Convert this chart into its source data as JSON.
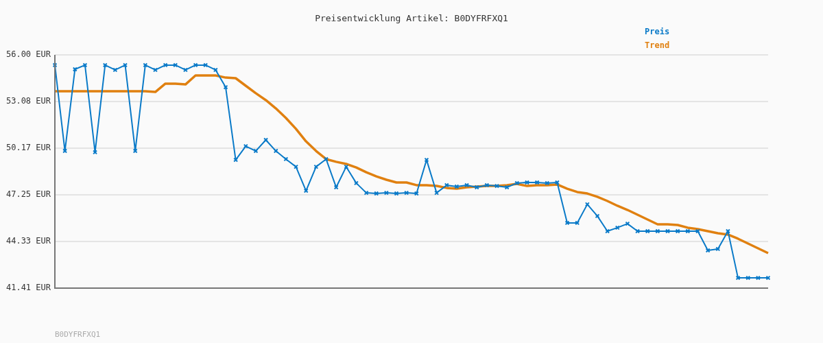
{
  "chart_data": {
    "type": "line",
    "title": "Preisentwicklung Artikel: B0DYFRFXQ1",
    "categories": [
      null,
      null,
      null,
      null,
      null,
      null,
      null,
      null,
      null,
      null,
      null,
      null,
      null,
      null,
      null,
      null,
      null,
      null,
      null,
      null,
      null,
      null,
      null,
      null,
      null,
      null,
      null,
      null,
      null,
      null,
      null,
      null,
      null,
      null,
      null,
      null,
      null,
      null,
      null,
      null,
      null,
      null,
      null,
      null,
      null,
      null,
      null,
      null,
      null,
      null,
      null,
      null,
      null,
      null,
      null,
      null,
      null,
      null,
      null,
      null,
      null,
      null,
      null,
      null,
      null,
      null,
      null,
      null,
      null,
      null,
      null,
      null
    ],
    "series": [
      {
        "name": "Preis",
        "color": "#0a7ac8",
        "marker": "cross",
        "values": [
          55.36,
          49.99,
          55.1,
          55.36,
          49.91,
          55.36,
          55.06,
          55.36,
          49.99,
          55.36,
          55.06,
          55.36,
          55.36,
          55.06,
          55.36,
          55.36,
          55.06,
          53.98,
          49.43,
          50.29,
          49.99,
          50.68,
          49.99,
          49.48,
          49.0,
          47.5,
          49.0,
          49.48,
          47.72,
          49.0,
          47.98,
          47.37,
          47.33,
          47.37,
          47.33,
          47.37,
          47.33,
          49.43,
          47.37,
          47.85,
          47.76,
          47.85,
          47.72,
          47.85,
          47.8,
          47.72,
          47.98,
          48.02,
          48.02,
          47.98,
          48.02,
          45.49,
          45.49,
          46.65,
          45.92,
          44.97,
          45.19,
          45.44,
          44.97,
          44.97,
          44.97,
          44.97,
          44.97,
          44.97,
          44.97,
          43.77,
          43.86,
          44.97,
          42.05,
          42.05,
          42.05,
          42.05
        ]
      },
      {
        "name": "Trend",
        "color": "#e08010",
        "marker": "none",
        "values": [
          53.73,
          53.73,
          53.73,
          53.73,
          53.73,
          53.73,
          53.73,
          53.73,
          53.73,
          53.73,
          53.68,
          54.2,
          54.2,
          54.15,
          54.71,
          54.71,
          54.71,
          54.58,
          54.54,
          54.07,
          53.6,
          53.17,
          52.65,
          52.05,
          51.37,
          50.59,
          49.99,
          49.48,
          49.31,
          49.18,
          48.96,
          48.66,
          48.4,
          48.19,
          48.02,
          48.02,
          47.85,
          47.85,
          47.8,
          47.68,
          47.63,
          47.72,
          47.76,
          47.8,
          47.8,
          47.85,
          47.93,
          47.8,
          47.85,
          47.85,
          47.89,
          47.63,
          47.42,
          47.33,
          47.12,
          46.86,
          46.56,
          46.3,
          46.0,
          45.7,
          45.4,
          45.4,
          45.36,
          45.19,
          45.1,
          44.97,
          44.84,
          44.76,
          44.5,
          44.2,
          43.9,
          43.6
        ]
      }
    ],
    "ylim": [
      41.41,
      56.0
    ],
    "yticks": [
      {
        "value": 41.41,
        "label": "41.41 EUR"
      },
      {
        "value": 44.33,
        "label": "44.33 EUR"
      },
      {
        "value": 47.25,
        "label": "47.25 EUR"
      },
      {
        "value": 50.17,
        "label": "50.17 EUR"
      },
      {
        "value": 53.08,
        "label": "53.08 EUR"
      },
      {
        "value": 56.0,
        "label": "56.00 EUR"
      }
    ],
    "grid": "y",
    "legend": "top right",
    "tick_labels": "y",
    "line_style": "solid",
    "annotations": [
      "B0DYFRFXQ1"
    ]
  }
}
